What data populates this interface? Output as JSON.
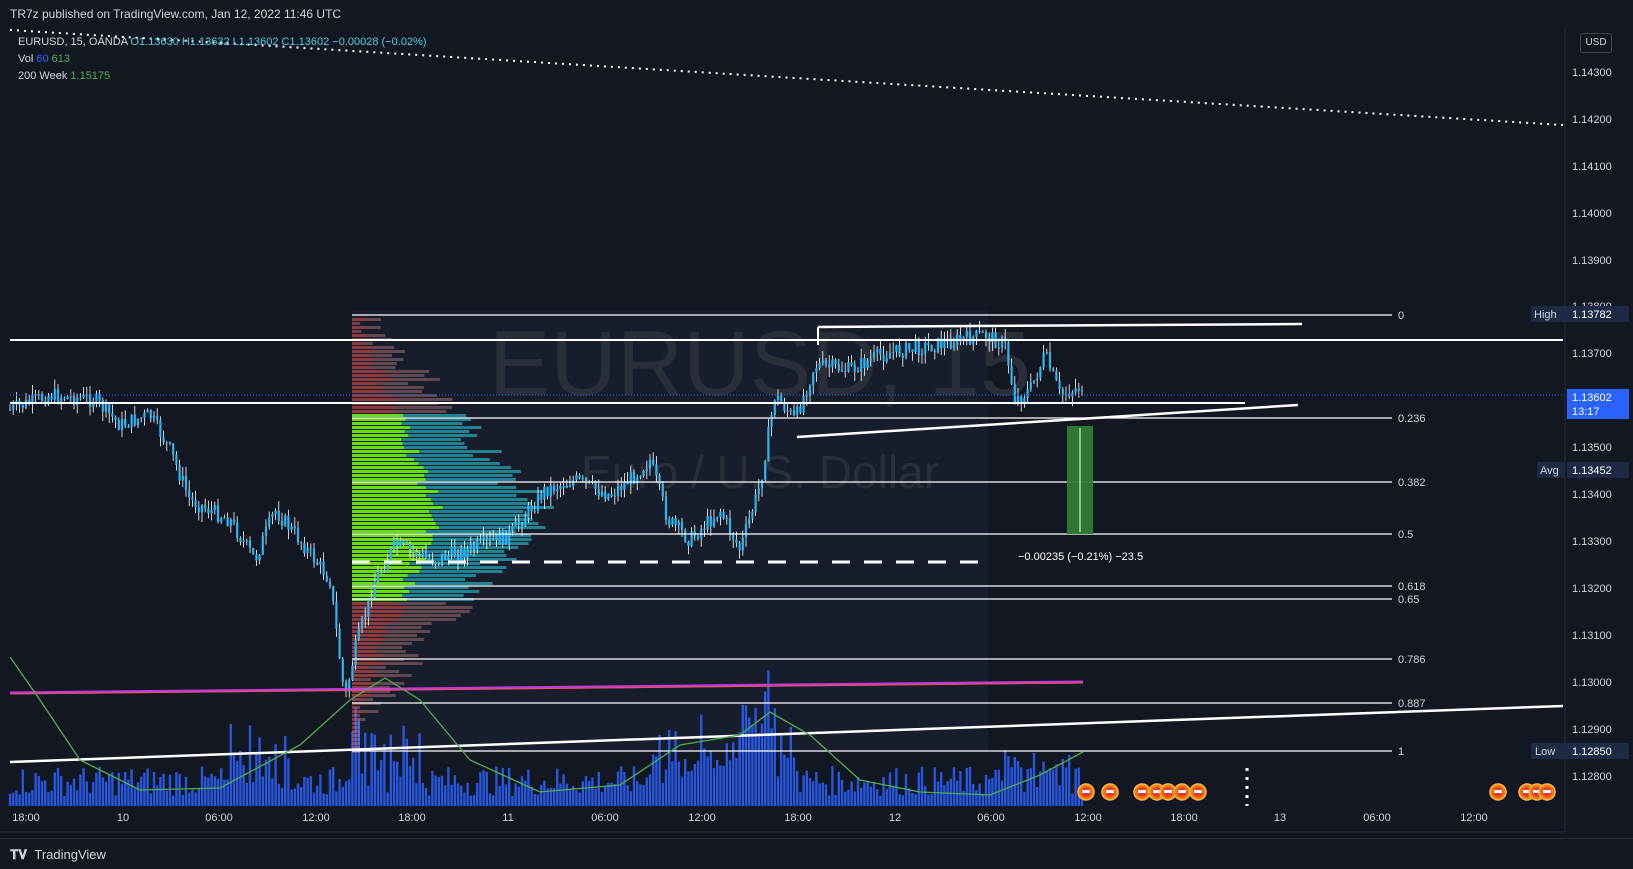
{
  "header": {
    "published": "TR7z published on TradingView.com, Jan 12, 2022 11:46 UTC"
  },
  "legend": {
    "symbol": "EURUSD, 15, OANDA",
    "ohlc": "O1.13630  H1.13632  L1.13602  C1.13602  −0.00028 (−0.02%)",
    "vol_label": "Vol",
    "vol_a": "60",
    "vol_b": "613",
    "ma_label": "200 Week",
    "ma_value": "1.15175"
  },
  "watermark": {
    "symbol": "EURUSD, 15",
    "name": "Euro / U.S. Dollar"
  },
  "currency": "USD",
  "price_axis": {
    "ticks": [
      "1.14300",
      "1.14200",
      "1.14100",
      "1.14000",
      "1.13900",
      "1.13800",
      "1.13700",
      "1.13500",
      "1.13400",
      "1.13300",
      "1.13200",
      "1.13100",
      "1.13000",
      "1.12900",
      "1.12800"
    ],
    "high_label": "High",
    "high_value": "1.13782",
    "current_value": "1.13602",
    "current_timer": "13:17",
    "avg_label": "Avg",
    "avg_value": "1.13452",
    "low_label": "Low",
    "low_value": "1.12850"
  },
  "time_axis": [
    "18:00",
    "10",
    "06:00",
    "12:00",
    "18:00",
    "11",
    "06:00",
    "12:00",
    "18:00",
    "12",
    "06:00",
    "12:00",
    "18:00",
    "13",
    "06:00",
    "12:00"
  ],
  "fib_levels": [
    "0",
    "0.236",
    "0.382",
    "0.5",
    "0.618",
    "0.65",
    "0.786",
    "0.887",
    "1"
  ],
  "measure_label": "−0.00235 (−0.21%) −23.5",
  "footer": {
    "brand": "TradingView"
  },
  "colors": {
    "background": "#131722",
    "candle": "#29b6f6",
    "volume": "#2962ff",
    "fib_line": "#ffffff",
    "ma_line": "#4caf50",
    "profile_up": "#76ff03",
    "profile_down": "#ef5350"
  }
}
